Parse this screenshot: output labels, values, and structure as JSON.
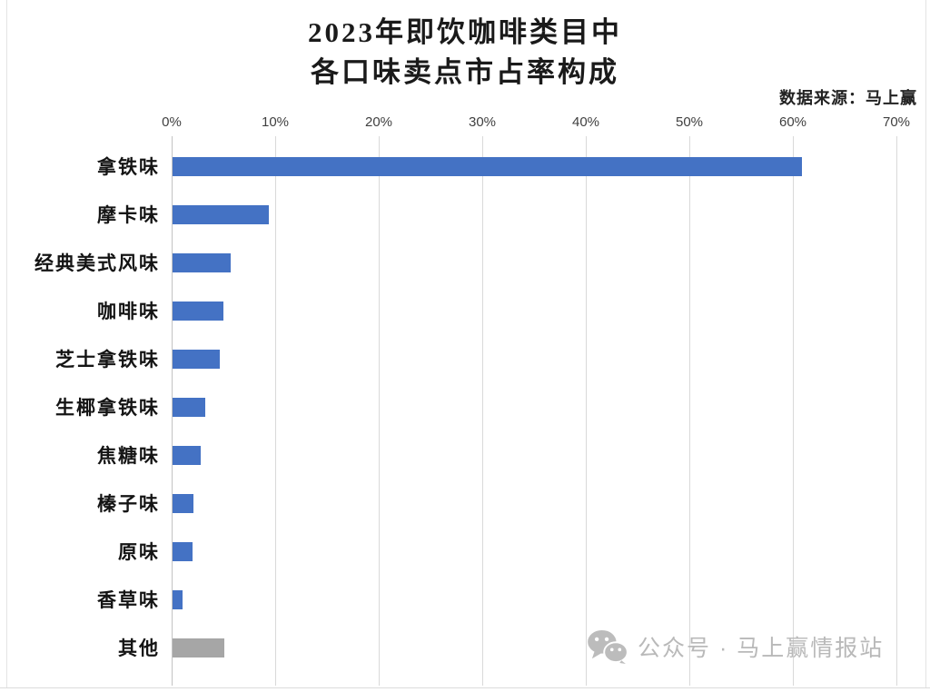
{
  "title": {
    "line1": "2023年即饮咖啡类目中",
    "line2": "各口味卖点市占率构成"
  },
  "source": "数据来源：马上赢",
  "watermark": {
    "icon": "wechat-icon",
    "text": "公众号 · 马上赢情报站"
  },
  "colors": {
    "bar_blue": "#4472C4",
    "bar_gray": "#A6A6A6",
    "gridline": "#D9D9D9",
    "watermark_gray": "#B9B9B9"
  },
  "chart_data": {
    "type": "bar",
    "orientation": "horizontal",
    "title": "2023年即饮咖啡类目中各口味卖点市占率构成",
    "xlabel": "",
    "ylabel": "",
    "xlim": [
      0,
      70
    ],
    "x_ticks": [
      "0%",
      "10%",
      "20%",
      "30%",
      "40%",
      "50%",
      "60%",
      "70%"
    ],
    "grid": true,
    "legend": false,
    "categories": [
      "拿铁味",
      "摩卡味",
      "经典美式风味",
      "咖啡味",
      "芝士拿铁味",
      "生椰拿铁味",
      "焦糖味",
      "榛子味",
      "原味",
      "香草味",
      "其他"
    ],
    "values": [
      60.8,
      9.3,
      5.6,
      4.9,
      4.6,
      3.2,
      2.7,
      2.0,
      1.9,
      1.0,
      5.0
    ],
    "unit": "%",
    "bar_colors": [
      "#4472C4",
      "#4472C4",
      "#4472C4",
      "#4472C4",
      "#4472C4",
      "#4472C4",
      "#4472C4",
      "#4472C4",
      "#4472C4",
      "#4472C4",
      "#A6A6A6"
    ]
  }
}
